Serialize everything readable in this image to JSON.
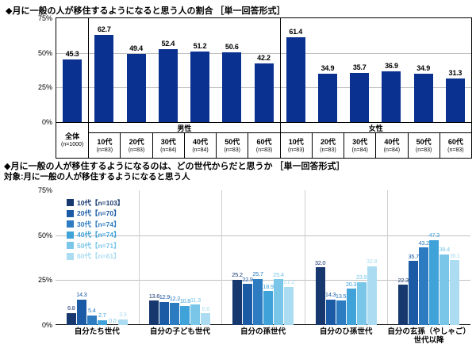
{
  "colors": {
    "bar_navy": "#0b3190",
    "grid": "#c0c0c0",
    "separator_dark": "#000000",
    "separator_light": "#d0d0d0",
    "series": [
      "#16386e",
      "#1b5ba5",
      "#2d7cc1",
      "#3fa2d8",
      "#79c6e9",
      "#abdcf2"
    ]
  },
  "chart_data": [
    {
      "type": "bar",
      "title": "◆月に一般の人が移住するようになると思う人の割合 ［単一回答形式］",
      "ylim": [
        0,
        75
      ],
      "yticks": [
        75,
        50,
        25,
        0
      ],
      "grid": true,
      "bar_color": "#0b3190",
      "groups": [
        {
          "header": null,
          "columns": [
            {
              "label": "全体",
              "n": "(n=1000)",
              "value": 45.3
            }
          ]
        },
        {
          "header": "男性",
          "columns": [
            {
              "label": "10代",
              "n": "(n=83)",
              "value": 62.7
            },
            {
              "label": "20代",
              "n": "(n=83)",
              "value": 49.4
            },
            {
              "label": "30代",
              "n": "(n=84)",
              "value": 52.4
            },
            {
              "label": "40代",
              "n": "(n=84)",
              "value": 51.2
            },
            {
              "label": "50代",
              "n": "(n=83)",
              "value": 50.6
            },
            {
              "label": "60代",
              "n": "(n=83)",
              "value": 42.2
            }
          ]
        },
        {
          "header": "女性",
          "columns": [
            {
              "label": "10代",
              "n": "(n=83)",
              "value": 61.4
            },
            {
              "label": "20代",
              "n": "(n=83)",
              "value": 34.9
            },
            {
              "label": "30代",
              "n": "(n=84)",
              "value": 35.7
            },
            {
              "label": "40代",
              "n": "(n=84)",
              "value": 36.9
            },
            {
              "label": "50代",
              "n": "(n=83)",
              "value": 34.9
            },
            {
              "label": "60代",
              "n": "(n=83)",
              "value": 31.3
            }
          ]
        }
      ]
    },
    {
      "type": "grouped-bar",
      "title": "◆月に一般の人が移住するようになるのは、どの世代からだと思うか ［単一回答形式］",
      "subtitle": "対象:月に一般の人が移住するようになると思う人",
      "ylim": [
        0,
        75
      ],
      "yticks": [
        75,
        50,
        25,
        0
      ],
      "grid": true,
      "legend_position": "top-left-inside",
      "categories": [
        "自分たち世代",
        "自分の子ども世代",
        "自分の孫世代",
        "自分のひ孫世代",
        "自分の玄孫（やしゃご）\n世代以降"
      ],
      "series": [
        {
          "name": "10代【n=103】",
          "color": "#16386e",
          "values": [
            6.8,
            13.6,
            25.2,
            32.0,
            22.3
          ]
        },
        {
          "name": "20代【n=70】",
          "color": "#1b5ba5",
          "values": [
            14.3,
            12.9,
            22.9,
            14.3,
            35.7
          ]
        },
        {
          "name": "30代【n=74】",
          "color": "#2d7cc1",
          "values": [
            5.4,
            12.2,
            25.7,
            13.5,
            43.2
          ]
        },
        {
          "name": "40代【n=74】",
          "color": "#3fa2d8",
          "values": [
            2.7,
            10.8,
            18.9,
            20.3,
            47.3
          ]
        },
        {
          "name": "50代【n=71】",
          "color": "#79c6e9",
          "values": [
            0.0,
            11.3,
            25.4,
            23.9,
            39.4
          ]
        },
        {
          "name": "60代【n=61】",
          "color": "#abdcf2",
          "values": [
            3.3,
            6.6,
            21.3,
            32.8,
            36.1
          ]
        }
      ]
    }
  ]
}
